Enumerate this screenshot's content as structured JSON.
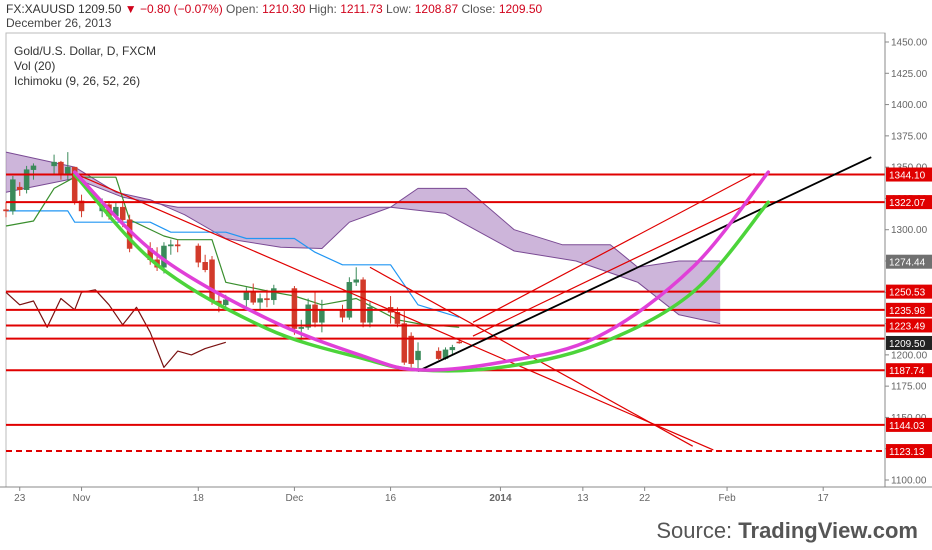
{
  "header": {
    "symbol": "FX:XAUUSD",
    "last": "1209.50",
    "change": "▼ −0.80 (−0.07%)",
    "open_label": "Open:",
    "open": "1210.30",
    "high_label": "High:",
    "high": "1211.73",
    "low_label": "Low:",
    "low": "1208.87",
    "close_label": "Close:",
    "close": "1209.50",
    "date": "December 26, 2013"
  },
  "indicators": {
    "title": "Gold/U.S. Dollar, D, FXCM",
    "vol": "Vol (20)",
    "ichimoku": "Ichimoku (9, 26, 52, 26)"
  },
  "source": {
    "prefix": "Source: ",
    "brand": "TradingView.com"
  },
  "colors": {
    "up": "#3a8a5a",
    "down": "#d23a2a",
    "horizontal": "#e00000",
    "cloud": "#9b6bb5",
    "conversion": "#3a8f2e",
    "base": "#2196f3",
    "lagging": "#7a1010",
    "arc_green": "#4cd43a",
    "arc_magenta": "#e040d8",
    "trend_black": "#000000",
    "axis_label_red": "#e00000",
    "axis_label_gray": "#707070",
    "axis_label_dark": "#222222"
  },
  "chart_data": {
    "type": "candlestick",
    "y_axis": {
      "ylim": [
        1100,
        1450
      ],
      "ticks": [
        1100,
        1125,
        1150,
        1175,
        1200,
        1225,
        1250,
        1275,
        1300,
        1325,
        1350,
        1375,
        1400,
        1425,
        1450
      ],
      "tick_labels": [
        "1100.00",
        "1125.00",
        "1150.00",
        "1175.00",
        "1200.00",
        "1225.00",
        "1250.00",
        "1275.00",
        "1300.00",
        "1325.00",
        "1350.00",
        "1375.00",
        "1400.00",
        "1425.00",
        "1450.00"
      ],
      "position": "right"
    },
    "x_axis": {
      "range": [
        "2013-10-21",
        "2014-02-26"
      ],
      "ticks": [
        {
          "date": "2013-10-23",
          "label": "23"
        },
        {
          "date": "2013-11-01",
          "label": "Nov"
        },
        {
          "date": "2013-11-18",
          "label": "18"
        },
        {
          "date": "2013-12-02",
          "label": "Dec"
        },
        {
          "date": "2013-12-16",
          "label": "16"
        },
        {
          "date": "2014-01-01",
          "label": "2014"
        },
        {
          "date": "2014-01-13",
          "label": "13"
        },
        {
          "date": "2014-01-22",
          "label": "22"
        },
        {
          "date": "2014-02-03",
          "label": "Feb"
        },
        {
          "date": "2014-02-17",
          "label": "17"
        }
      ]
    },
    "candles": [
      {
        "d": "2013-10-21",
        "o": 1316,
        "h": 1322,
        "l": 1310,
        "c": 1315
      },
      {
        "d": "2013-10-22",
        "o": 1315,
        "h": 1343,
        "l": 1312,
        "c": 1340
      },
      {
        "d": "2013-10-23",
        "o": 1334,
        "h": 1338,
        "l": 1327,
        "c": 1332
      },
      {
        "d": "2013-10-24",
        "o": 1332,
        "h": 1351,
        "l": 1329,
        "c": 1348
      },
      {
        "d": "2013-10-25",
        "o": 1348,
        "h": 1353,
        "l": 1340,
        "c": 1351
      },
      {
        "d": "2013-10-28",
        "o": 1351,
        "h": 1360,
        "l": 1344,
        "c": 1354
      },
      {
        "d": "2013-10-29",
        "o": 1354,
        "h": 1355,
        "l": 1340,
        "c": 1345
      },
      {
        "d": "2013-10-30",
        "o": 1345,
        "h": 1362,
        "l": 1340,
        "c": 1350
      },
      {
        "d": "2013-10-31",
        "o": 1350,
        "h": 1350,
        "l": 1320,
        "c": 1323
      },
      {
        "d": "2013-11-01",
        "o": 1323,
        "h": 1328,
        "l": 1310,
        "c": 1315
      },
      {
        "d": "2013-11-04",
        "o": 1315,
        "h": 1325,
        "l": 1310,
        "c": 1320
      },
      {
        "d": "2013-11-05",
        "o": 1320,
        "h": 1323,
        "l": 1308,
        "c": 1311
      },
      {
        "d": "2013-11-06",
        "o": 1311,
        "h": 1322,
        "l": 1308,
        "c": 1318
      },
      {
        "d": "2013-11-07",
        "o": 1318,
        "h": 1323,
        "l": 1302,
        "c": 1308
      },
      {
        "d": "2013-11-08",
        "o": 1308,
        "h": 1312,
        "l": 1282,
        "c": 1285
      },
      {
        "d": "2013-11-11",
        "o": 1285,
        "h": 1290,
        "l": 1272,
        "c": 1276
      },
      {
        "d": "2013-11-12",
        "o": 1276,
        "h": 1286,
        "l": 1267,
        "c": 1270
      },
      {
        "d": "2013-11-13",
        "o": 1270,
        "h": 1290,
        "l": 1265,
        "c": 1287
      },
      {
        "d": "2013-11-14",
        "o": 1287,
        "h": 1292,
        "l": 1280,
        "c": 1288
      },
      {
        "d": "2013-11-15",
        "o": 1288,
        "h": 1292,
        "l": 1282,
        "c": 1287
      },
      {
        "d": "2013-11-18",
        "o": 1287,
        "h": 1289,
        "l": 1270,
        "c": 1274
      },
      {
        "d": "2013-11-19",
        "o": 1274,
        "h": 1280,
        "l": 1266,
        "c": 1268
      },
      {
        "d": "2013-11-20",
        "o": 1276,
        "h": 1279,
        "l": 1240,
        "c": 1243
      },
      {
        "d": "2013-11-21",
        "o": 1243,
        "h": 1248,
        "l": 1234,
        "c": 1240
      },
      {
        "d": "2013-11-22",
        "o": 1240,
        "h": 1248,
        "l": 1236,
        "c": 1244
      },
      {
        "d": "2013-11-25",
        "o": 1244,
        "h": 1254,
        "l": 1238,
        "c": 1250
      },
      {
        "d": "2013-11-26",
        "o": 1250,
        "h": 1257,
        "l": 1240,
        "c": 1242
      },
      {
        "d": "2013-11-27",
        "o": 1242,
        "h": 1249,
        "l": 1236,
        "c": 1245
      },
      {
        "d": "2013-11-28",
        "o": 1245,
        "h": 1252,
        "l": 1238,
        "c": 1244
      },
      {
        "d": "2013-11-29",
        "o": 1244,
        "h": 1256,
        "l": 1240,
        "c": 1253
      },
      {
        "d": "2013-12-02",
        "o": 1253,
        "h": 1255,
        "l": 1216,
        "c": 1221
      },
      {
        "d": "2013-12-03",
        "o": 1221,
        "h": 1228,
        "l": 1212,
        "c": 1222
      },
      {
        "d": "2013-12-04",
        "o": 1222,
        "h": 1245,
        "l": 1220,
        "c": 1240
      },
      {
        "d": "2013-12-05",
        "o": 1240,
        "h": 1250,
        "l": 1222,
        "c": 1226
      },
      {
        "d": "2013-12-06",
        "o": 1226,
        "h": 1244,
        "l": 1218,
        "c": 1236
      },
      {
        "d": "2013-12-09",
        "o": 1236,
        "h": 1240,
        "l": 1226,
        "c": 1230
      },
      {
        "d": "2013-12-10",
        "o": 1230,
        "h": 1262,
        "l": 1228,
        "c": 1258
      },
      {
        "d": "2013-12-11",
        "o": 1258,
        "h": 1270,
        "l": 1255,
        "c": 1260
      },
      {
        "d": "2013-12-12",
        "o": 1260,
        "h": 1262,
        "l": 1222,
        "c": 1226
      },
      {
        "d": "2013-12-13",
        "o": 1226,
        "h": 1242,
        "l": 1222,
        "c": 1238
      },
      {
        "d": "2013-12-16",
        "o": 1238,
        "h": 1247,
        "l": 1225,
        "c": 1234
      },
      {
        "d": "2013-12-17",
        "o": 1234,
        "h": 1238,
        "l": 1222,
        "c": 1225
      },
      {
        "d": "2013-12-18",
        "o": 1225,
        "h": 1235,
        "l": 1192,
        "c": 1194
      },
      {
        "d": "2013-12-19",
        "o": 1215,
        "h": 1218,
        "l": 1190,
        "c": 1193
      },
      {
        "d": "2013-12-20",
        "o": 1196,
        "h": 1210,
        "l": 1188,
        "c": 1203
      },
      {
        "d": "2013-12-23",
        "o": 1203,
        "h": 1206,
        "l": 1196,
        "c": 1197
      },
      {
        "d": "2013-12-24",
        "o": 1197,
        "h": 1206,
        "l": 1196,
        "c": 1204
      },
      {
        "d": "2013-12-25",
        "o": 1204,
        "h": 1208,
        "l": 1200,
        "c": 1206
      },
      {
        "d": "2013-12-26",
        "o": 1210.3,
        "h": 1211.73,
        "l": 1208.87,
        "c": 1209.5
      }
    ],
    "cloud": {
      "span_a": [
        {
          "d": "2013-10-21",
          "v": 1362
        },
        {
          "d": "2013-10-31",
          "v": 1350
        },
        {
          "d": "2013-11-06",
          "v": 1330
        },
        {
          "d": "2013-11-11",
          "v": 1324
        },
        {
          "d": "2013-11-16",
          "v": 1312
        },
        {
          "d": "2013-11-22",
          "v": 1293
        },
        {
          "d": "2013-11-30",
          "v": 1286
        },
        {
          "d": "2013-12-06",
          "v": 1285
        },
        {
          "d": "2013-12-10",
          "v": 1306
        },
        {
          "d": "2013-12-16",
          "v": 1318
        },
        {
          "d": "2013-12-20",
          "v": 1333
        },
        {
          "d": "2013-12-27",
          "v": 1333
        },
        {
          "d": "2014-01-03",
          "v": 1300
        },
        {
          "d": "2014-01-10",
          "v": 1288
        },
        {
          "d": "2014-01-17",
          "v": 1288
        },
        {
          "d": "2014-01-21",
          "v": 1270
        },
        {
          "d": "2014-01-27",
          "v": 1275
        },
        {
          "d": "2014-01-31",
          "v": 1275
        },
        {
          "d": "2014-02-02",
          "v": 1275
        }
      ],
      "span_b": [
        {
          "d": "2013-10-21",
          "v": 1330
        },
        {
          "d": "2013-10-31",
          "v": 1341
        },
        {
          "d": "2013-11-07",
          "v": 1326
        },
        {
          "d": "2013-11-15",
          "v": 1318
        },
        {
          "d": "2013-11-22",
          "v": 1318
        },
        {
          "d": "2013-12-05",
          "v": 1318
        },
        {
          "d": "2013-12-16",
          "v": 1318
        },
        {
          "d": "2013-12-24",
          "v": 1313
        },
        {
          "d": "2014-01-03",
          "v": 1283
        },
        {
          "d": "2014-01-12",
          "v": 1275
        },
        {
          "d": "2014-01-21",
          "v": 1258
        },
        {
          "d": "2014-01-27",
          "v": 1232
        },
        {
          "d": "2014-02-02",
          "v": 1225
        }
      ]
    },
    "conversion_line": [
      {
        "d": "2013-10-21",
        "v": 1303
      },
      {
        "d": "2013-10-25",
        "v": 1307
      },
      {
        "d": "2013-10-28",
        "v": 1333
      },
      {
        "d": "2013-10-31",
        "v": 1342
      },
      {
        "d": "2013-11-06",
        "v": 1342
      },
      {
        "d": "2013-11-08",
        "v": 1308
      },
      {
        "d": "2013-11-13",
        "v": 1295
      },
      {
        "d": "2013-11-15",
        "v": 1292
      },
      {
        "d": "2013-11-20",
        "v": 1292
      },
      {
        "d": "2013-11-22",
        "v": 1258
      },
      {
        "d": "2013-11-29",
        "v": 1250
      },
      {
        "d": "2013-12-02",
        "v": 1247
      },
      {
        "d": "2013-12-06",
        "v": 1240
      },
      {
        "d": "2013-12-11",
        "v": 1245
      },
      {
        "d": "2013-12-17",
        "v": 1228
      },
      {
        "d": "2013-12-20",
        "v": 1225
      },
      {
        "d": "2013-12-26",
        "v": 1222
      }
    ],
    "base_line": [
      {
        "d": "2013-10-21",
        "v": 1315
      },
      {
        "d": "2013-10-30",
        "v": 1315
      },
      {
        "d": "2013-10-31",
        "v": 1306
      },
      {
        "d": "2013-11-11",
        "v": 1306
      },
      {
        "d": "2013-11-14",
        "v": 1298
      },
      {
        "d": "2013-11-22",
        "v": 1298
      },
      {
        "d": "2013-11-25",
        "v": 1293
      },
      {
        "d": "2013-12-02",
        "v": 1293
      },
      {
        "d": "2013-12-05",
        "v": 1282
      },
      {
        "d": "2013-12-09",
        "v": 1272
      },
      {
        "d": "2013-12-16",
        "v": 1272
      },
      {
        "d": "2013-12-20",
        "v": 1240
      },
      {
        "d": "2013-12-26",
        "v": 1230
      }
    ],
    "lagging_span": [
      {
        "d": "2013-10-21",
        "v": 1250
      },
      {
        "d": "2013-10-23",
        "v": 1240
      },
      {
        "d": "2013-10-25",
        "v": 1243
      },
      {
        "d": "2013-10-27",
        "v": 1222
      },
      {
        "d": "2013-10-29",
        "v": 1245
      },
      {
        "d": "2013-10-31",
        "v": 1236
      },
      {
        "d": "2013-11-01",
        "v": 1250
      },
      {
        "d": "2013-11-03",
        "v": 1252
      },
      {
        "d": "2013-11-05",
        "v": 1240
      },
      {
        "d": "2013-11-06",
        "v": 1232
      },
      {
        "d": "2013-11-07",
        "v": 1224
      },
      {
        "d": "2013-11-09",
        "v": 1238
      },
      {
        "d": "2013-11-11",
        "v": 1218
      },
      {
        "d": "2013-11-13",
        "v": 1190
      },
      {
        "d": "2013-11-15",
        "v": 1203
      },
      {
        "d": "2013-11-17",
        "v": 1200
      },
      {
        "d": "2013-11-19",
        "v": 1205
      },
      {
        "d": "2013-11-22",
        "v": 1210
      }
    ],
    "horizontal_levels": [
      {
        "value": 1344.1,
        "label": "1344.10",
        "style": "solid"
      },
      {
        "value": 1322.07,
        "label": "1322.07",
        "style": "solid"
      },
      {
        "value": 1250.53,
        "label": "1250.53",
        "style": "solid"
      },
      {
        "value": 1235.98,
        "label": "1235.98",
        "style": "solid"
      },
      {
        "value": 1223.49,
        "label": "1223.49",
        "style": "solid"
      },
      {
        "value": 1213.0,
        "label": "",
        "style": "solid"
      },
      {
        "value": 1187.74,
        "label": "1187.74",
        "style": "solid"
      },
      {
        "value": 1144.03,
        "label": "1144.03",
        "style": "solid"
      },
      {
        "value": 1123.13,
        "label": "1123.13",
        "style": "dashed"
      }
    ],
    "price_labels": [
      {
        "value": 1274.44,
        "label": "1274.44",
        "color": "gray"
      },
      {
        "value": 1209.5,
        "label": "1209.50",
        "color": "dark"
      }
    ],
    "trend_lines": [
      {
        "from": {
          "d": "2013-10-31",
          "v": 1345
        },
        "to": {
          "d": "2014-02-01",
          "v": 1124
        },
        "color": "red"
      },
      {
        "from": {
          "d": "2013-12-13",
          "v": 1270
        },
        "to": {
          "d": "2014-01-29",
          "v": 1127
        },
        "color": "red"
      },
      {
        "from": {
          "d": "2013-12-28",
          "v": 1226
        },
        "to": {
          "d": "2014-02-07",
          "v": 1345
        },
        "color": "red"
      },
      {
        "from": {
          "d": "2013-12-28",
          "v": 1215
        },
        "to": {
          "d": "2014-02-07",
          "v": 1323
        },
        "color": "red"
      },
      {
        "from": {
          "d": "2013-12-20",
          "v": 1187
        },
        "to": {
          "d": "2014-02-24",
          "v": 1358
        },
        "color": "black"
      }
    ],
    "arcs": [
      {
        "color": "green",
        "points": [
          {
            "d": "2013-10-31",
            "v": 1344
          },
          {
            "d": "2013-11-12",
            "v": 1272
          },
          {
            "d": "2013-11-28",
            "v": 1221
          },
          {
            "d": "2013-12-12",
            "v": 1197
          },
          {
            "d": "2013-12-20",
            "v": 1188
          },
          {
            "d": "2014-01-01",
            "v": 1190
          },
          {
            "d": "2014-01-15",
            "v": 1208
          },
          {
            "d": "2014-01-29",
            "v": 1250
          },
          {
            "d": "2014-02-09",
            "v": 1322
          }
        ]
      },
      {
        "color": "magenta",
        "points": [
          {
            "d": "2013-10-31",
            "v": 1346
          },
          {
            "d": "2013-11-12",
            "v": 1280
          },
          {
            "d": "2013-11-28",
            "v": 1229
          },
          {
            "d": "2013-12-12",
            "v": 1199
          },
          {
            "d": "2013-12-20",
            "v": 1188
          },
          {
            "d": "2014-01-01",
            "v": 1194
          },
          {
            "d": "2014-01-15",
            "v": 1214
          },
          {
            "d": "2014-01-29",
            "v": 1270
          },
          {
            "d": "2014-02-09",
            "v": 1346
          }
        ]
      }
    ]
  }
}
